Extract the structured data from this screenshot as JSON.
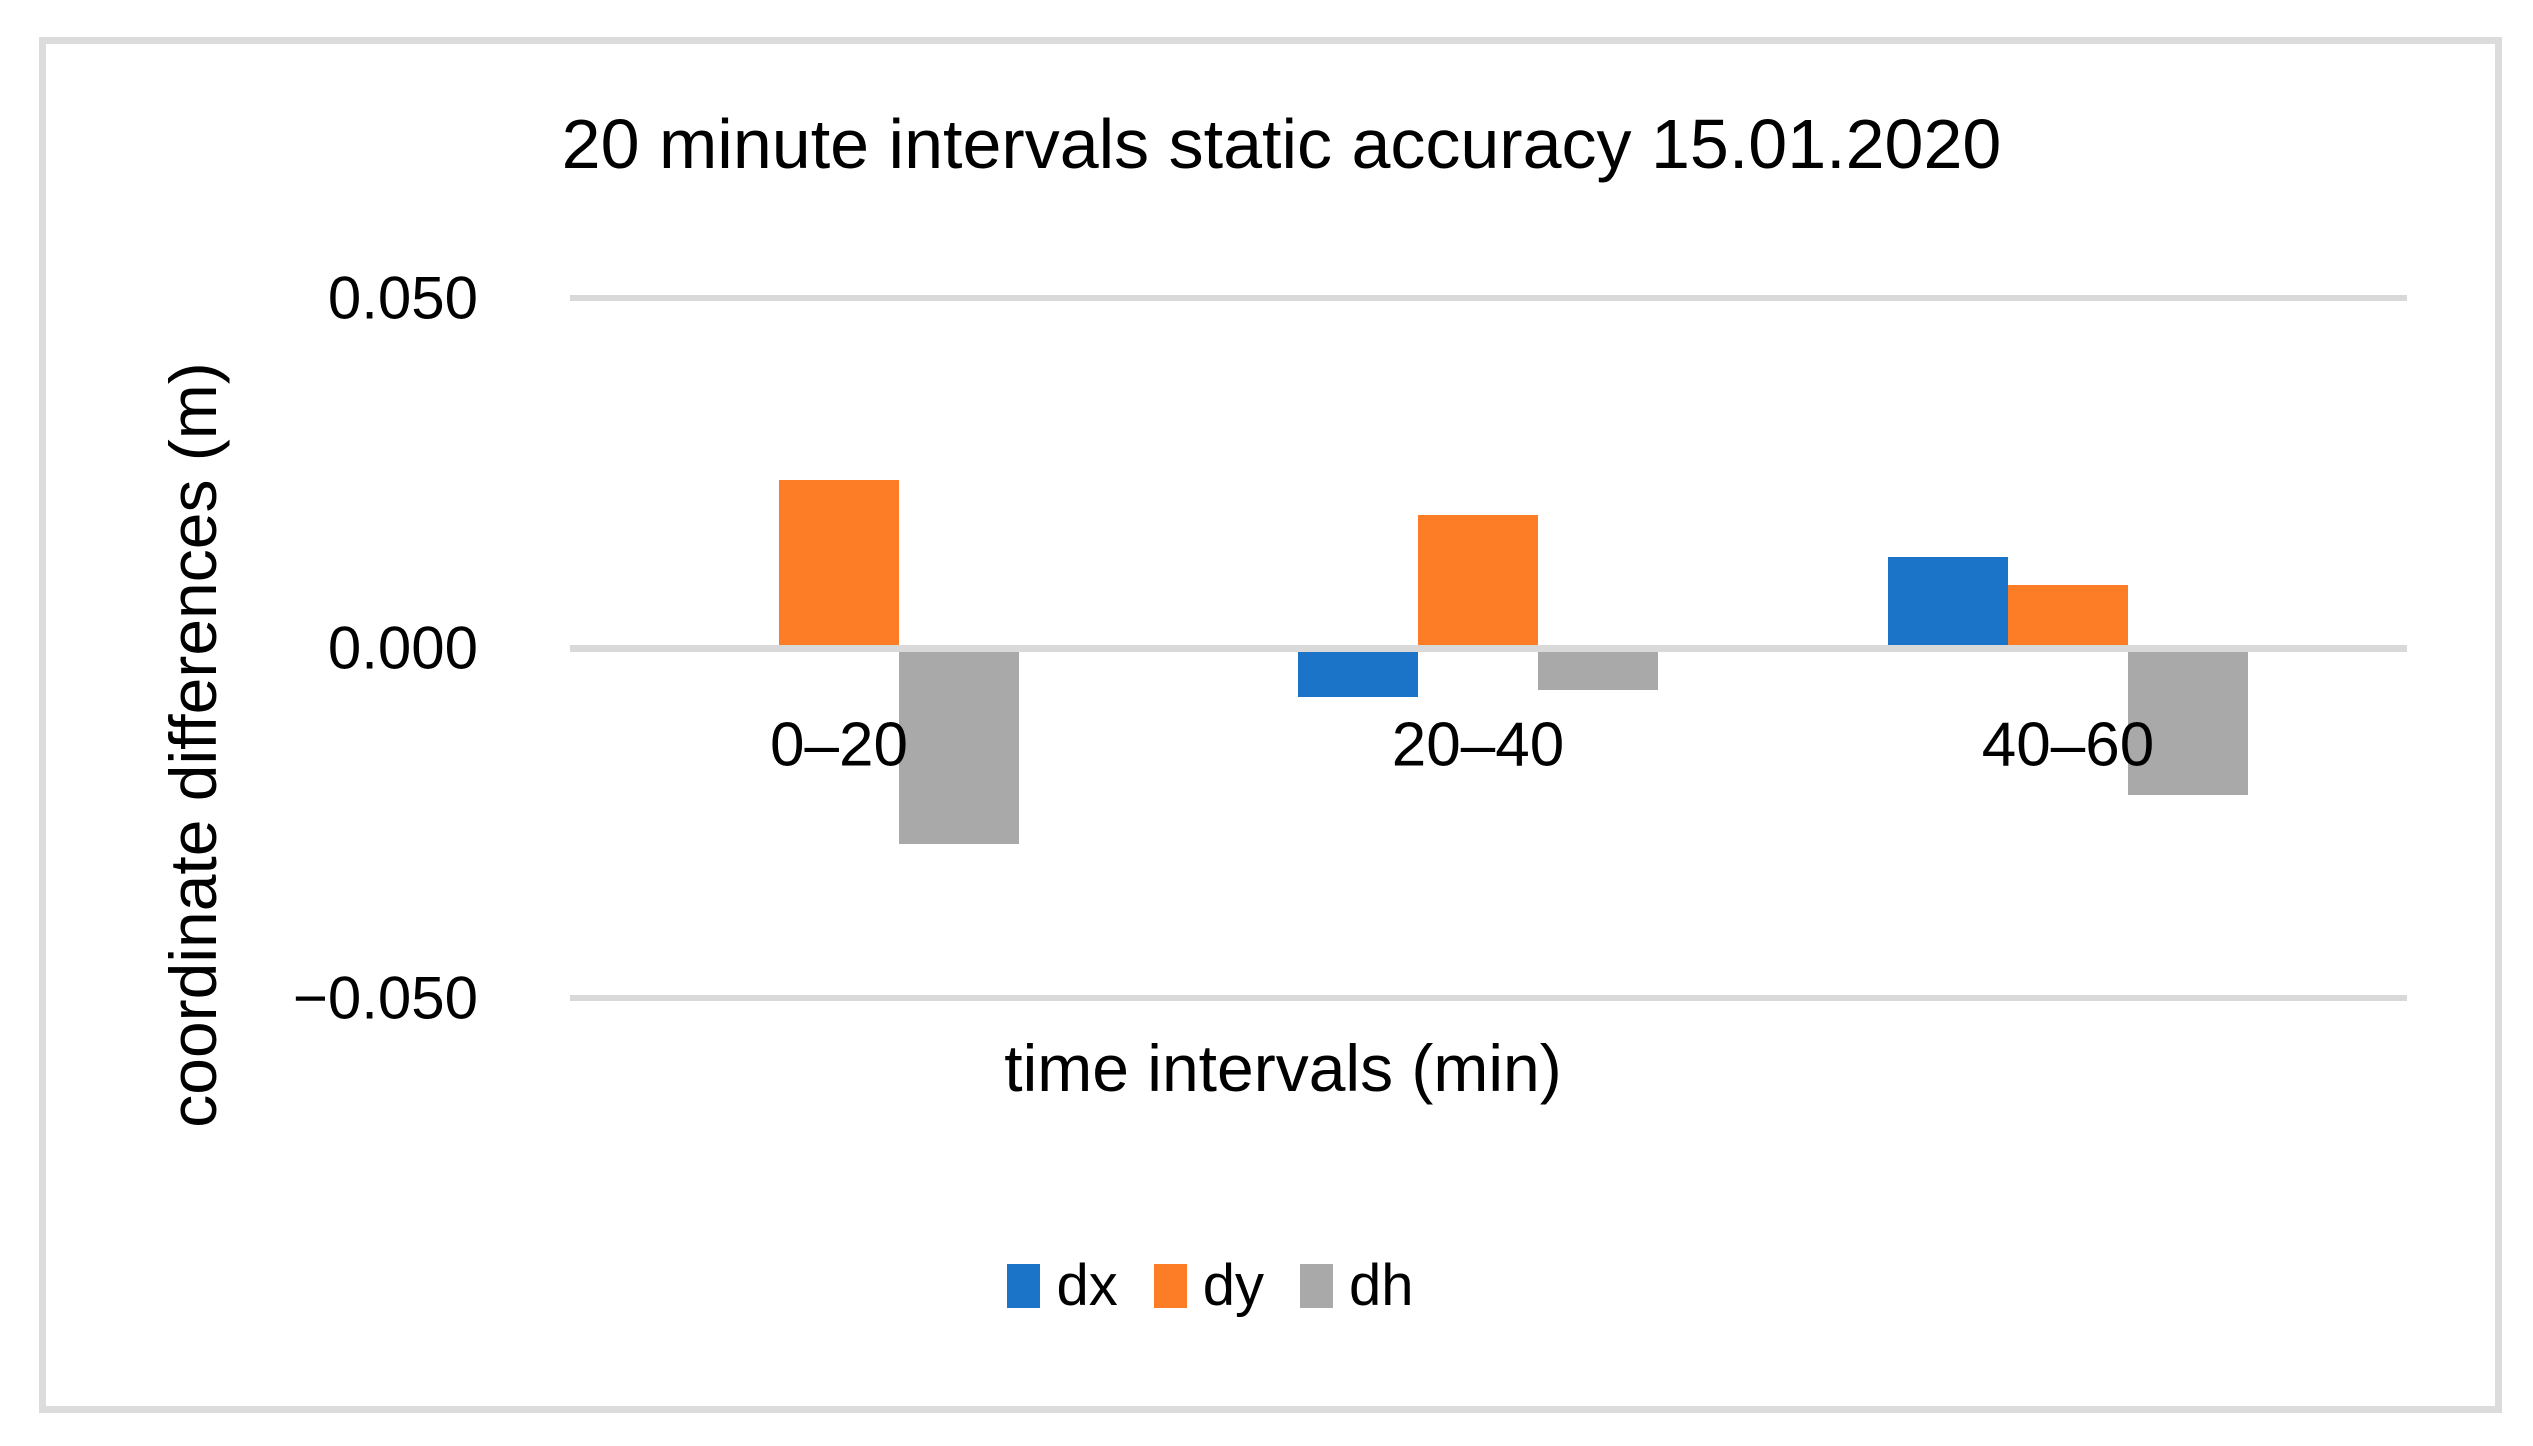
{
  "chart_data": {
    "type": "bar",
    "title": "20 minute intervals static accuracy 15.01.2020",
    "xlabel": "time intervals (min)",
    "ylabel": "coordinate differences (m)",
    "categories": [
      "0–20",
      "20–40",
      "40–60"
    ],
    "series": [
      {
        "name": "dx",
        "color": "#1b74c8",
        "values": [
          0.0,
          -0.007,
          0.013
        ]
      },
      {
        "name": "dy",
        "color": "#fd7d26",
        "values": [
          0.024,
          0.019,
          0.009
        ]
      },
      {
        "name": "dh",
        "color": "#a9a9a9",
        "values": [
          -0.028,
          -0.006,
          -0.021
        ]
      }
    ],
    "yticks": [
      0.05,
      0.0,
      -0.05
    ],
    "ytick_labels": [
      "0.050",
      "0.000",
      "−0.050"
    ],
    "ylim": [
      -0.05,
      0.05
    ],
    "grid": true,
    "gridline_color": "#d9d9d9",
    "legend_position": "bottom",
    "background_color": "#ffffff",
    "border_color": "#dcdcdc",
    "text_color": "#000000"
  }
}
